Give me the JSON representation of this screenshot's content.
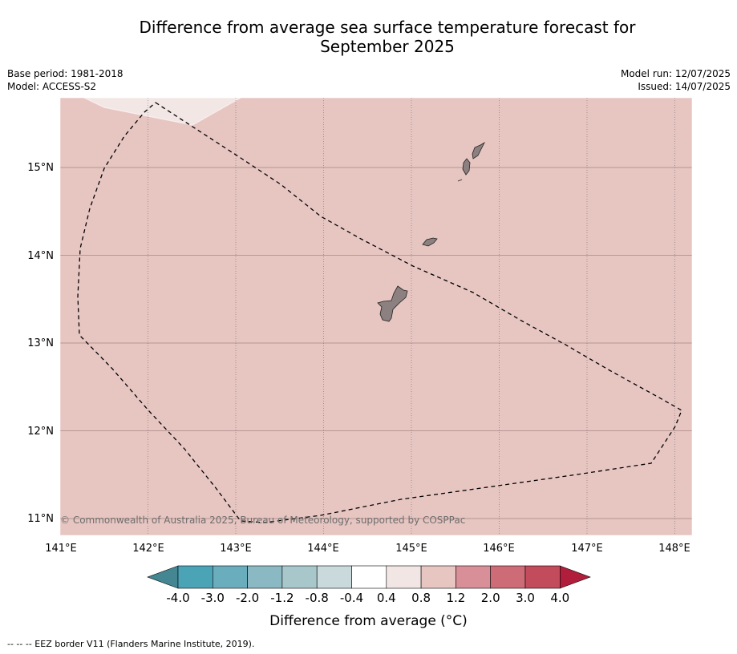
{
  "title_line1": "Difference from average sea surface temperature forecast for",
  "title_line2": "September 2025",
  "meta": {
    "base_period": "Base period: 1981-2018",
    "model": "Model: ACCESS-S2",
    "model_run": "Model run: 12/07/2025",
    "issued": "Issued: 14/07/2025"
  },
  "map": {
    "lon_range": [
      141.0,
      148.2
    ],
    "lat_range": [
      10.8,
      15.8
    ],
    "lon_labels": [
      "141°E",
      "142°E",
      "143°E",
      "144°E",
      "145°E",
      "146°E",
      "147°E",
      "148°E"
    ],
    "lat_labels": [
      "15°N",
      "14°N",
      "13°N",
      "12°N",
      "11°N"
    ],
    "background_category": "0.8 to 1.2",
    "background_color": "#e7c6c2",
    "patch_category": "0.4 to 0.8",
    "patch_color": "#f3e7e5",
    "land_color": "#8c8080",
    "copyright": "© Commonwealth of Australia 2025, Bureau of Meteorology, supported by COSPPac"
  },
  "colorbar": {
    "ticks": [
      "-4.0",
      "-3.0",
      "-2.0",
      "-1.2",
      "-0.8",
      "-0.4",
      "0.4",
      "0.8",
      "1.2",
      "2.0",
      "3.0",
      "4.0"
    ],
    "colors": [
      "#4aa4b6",
      "#6aaebd",
      "#8ab8c3",
      "#a8c7ca",
      "#c9d9dc",
      "#ffffff",
      "#f2e6e4",
      "#e7c6c2",
      "#d88f98",
      "#cd6b77",
      "#c24b5c"
    ],
    "under_color": "#448692",
    "over_color": "#b11e3c",
    "label": "Difference from average (°C)"
  },
  "footnote": "--  --  -- EEZ border V11 (Flanders Marine Institute, 2019)."
}
